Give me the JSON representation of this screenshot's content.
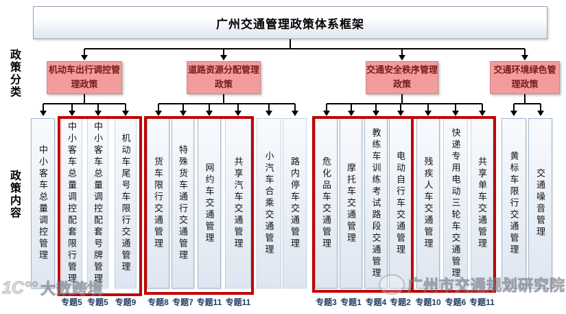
{
  "title": "广州交通管理政策体系框架",
  "side_labels": {
    "top": "政策分类",
    "bottom": "政策内容"
  },
  "groups": [
    {
      "category": "机动车出行调控管理政策",
      "columns": [
        {
          "text": "中小客车总量调控管理",
          "label": ""
        },
        {
          "text": "中小客车总量调控配套限行管理",
          "label": "专题5"
        },
        {
          "text": "中小客车总量调控配套号牌管理",
          "label": "专题5"
        },
        {
          "text": "机动车尾号车限行交通管理",
          "label": "专题9"
        }
      ]
    },
    {
      "category": "道路资源分配管理政策",
      "columns": [
        {
          "text": "货车限行交通管理",
          "label": "专题8"
        },
        {
          "text": "特殊货车通行交通管理",
          "label": "专题7"
        },
        {
          "text": "网约车交通管理",
          "label": "专题11"
        },
        {
          "text": "共享汽车交通管理",
          "label": "专题11"
        },
        {
          "text": "小汽车合乘交通管理",
          "label": ""
        },
        {
          "text": "路内停车交通管理",
          "label": ""
        }
      ]
    },
    {
      "category": "交通安全秩序管理政策",
      "columns": [
        {
          "text": "危化品车交通管理",
          "label": "专题3"
        },
        {
          "text": "摩托车交通管理",
          "label": "专题1"
        },
        {
          "text": "教练车训练考试路段交通管理",
          "label": "专题4"
        },
        {
          "text": "电动自行车交通管理",
          "label": "专题2"
        },
        {
          "text": "残疾人车交通管理",
          "label": "专题10"
        },
        {
          "text": "快递专用电动三轮车交通管理",
          "label": "专题6"
        },
        {
          "text": "共享单车交通管理",
          "label": "专题11"
        }
      ]
    },
    {
      "category": "交通环境绿色管理政策",
      "columns": [
        {
          "text": "黄标车限行交通管理",
          "label": ""
        },
        {
          "text": "交通噪音管理",
          "label": ""
        }
      ]
    }
  ],
  "watermarks": {
    "bottom_left_logo": "1C°°",
    "bottom_left": "大数跨境",
    "bottom_right": "广州市交通规划研究院"
  },
  "colors": {
    "red_frame": "#c00000",
    "category_fill": "#f29c9c",
    "category_border": "#ce8484",
    "category_text": "#7a1a1a",
    "column_border": "#9fb6cd",
    "connector": "#000000",
    "topic_label": "#1e3a5f"
  }
}
